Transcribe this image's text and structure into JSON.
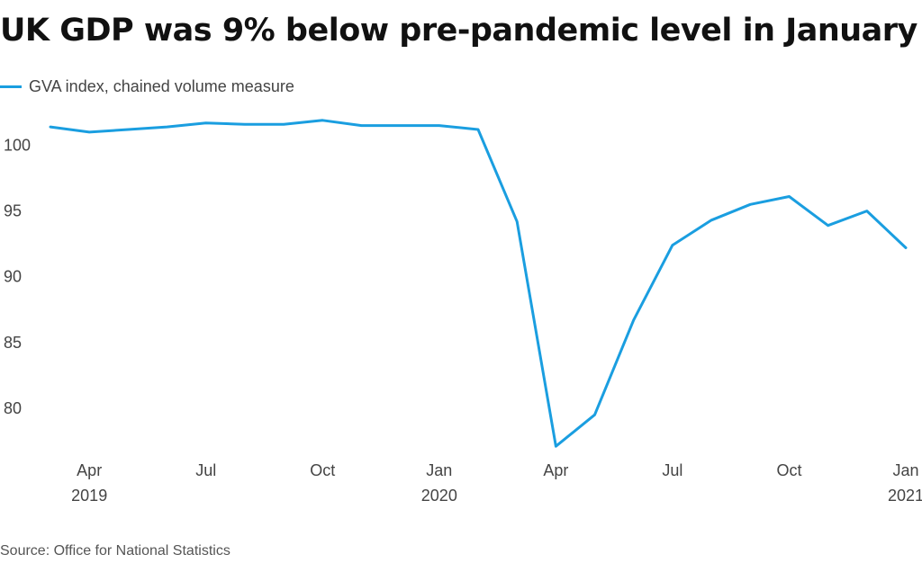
{
  "title": "UK GDP was 9% below pre-pandemic level in January",
  "source": "Source: Office for National Statistics",
  "colors": {
    "series": "#1a9ee0",
    "text": "#444444",
    "title": "#111111"
  },
  "chart_data": {
    "type": "line",
    "title": "UK GDP was 9% below pre-pandemic level in January",
    "xlabel": "",
    "ylabel": "",
    "grid": false,
    "legend_position": "top-left",
    "ylim": [
      76.5,
      102.5
    ],
    "y_ticks": [
      80,
      85,
      90,
      95,
      100
    ],
    "x": [
      "2019-03",
      "2019-04",
      "2019-05",
      "2019-06",
      "2019-07",
      "2019-08",
      "2019-09",
      "2019-10",
      "2019-11",
      "2019-12",
      "2020-01",
      "2020-02",
      "2020-03",
      "2020-04",
      "2020-05",
      "2020-06",
      "2020-07",
      "2020-08",
      "2020-09",
      "2020-10",
      "2020-11",
      "2020-12",
      "2021-01"
    ],
    "x_ticks": [
      {
        "x": "2019-04",
        "label": "Apr",
        "year": "2019"
      },
      {
        "x": "2019-07",
        "label": "Jul",
        "year": ""
      },
      {
        "x": "2019-10",
        "label": "Oct",
        "year": ""
      },
      {
        "x": "2020-01",
        "label": "Jan",
        "year": "2020"
      },
      {
        "x": "2020-04",
        "label": "Apr",
        "year": ""
      },
      {
        "x": "2020-07",
        "label": "Jul",
        "year": ""
      },
      {
        "x": "2020-10",
        "label": "Oct",
        "year": ""
      },
      {
        "x": "2021-01",
        "label": "Jan",
        "year": "2021"
      }
    ],
    "series": [
      {
        "name": "GVA index, chained volume measure",
        "color": "#1a9ee0",
        "values": [
          101.4,
          101.0,
          101.2,
          101.4,
          101.7,
          101.6,
          101.6,
          101.9,
          101.5,
          101.5,
          101.5,
          101.2,
          94.2,
          77.1,
          79.5,
          86.7,
          92.4,
          94.3,
          95.5,
          96.1,
          93.9,
          95.0,
          92.2
        ]
      }
    ]
  }
}
